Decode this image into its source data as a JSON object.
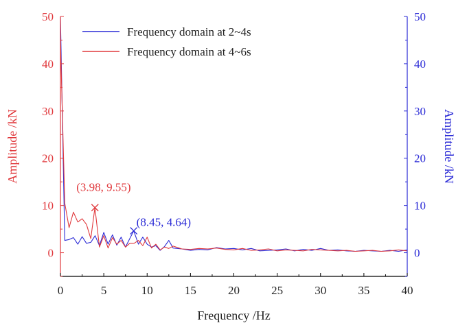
{
  "chart_data": {
    "type": "line",
    "title": "",
    "xlabel": "Frequency /Hz",
    "ylabel_left": "Amplitude /kN",
    "ylabel_right": "Amplitude /kN",
    "xlim": [
      0,
      40
    ],
    "ylim_left": [
      -5,
      50
    ],
    "ylim_right": [
      -5,
      50
    ],
    "x_ticks": [
      0,
      5,
      10,
      15,
      20,
      25,
      30,
      35,
      40
    ],
    "x_tick_labels": [
      "0",
      "5",
      "10",
      "15",
      "20",
      "25",
      "30",
      "35",
      "40"
    ],
    "y_ticks": [
      0,
      10,
      20,
      30,
      40,
      50
    ],
    "y_tick_labels": [
      "0",
      "10",
      "20",
      "30",
      "40",
      "50"
    ],
    "grid": false,
    "legend_position": "top-left",
    "colors": {
      "red": "#e0383c",
      "blue": "#2a2ad6",
      "axis": "#000000"
    },
    "series": [
      {
        "name": "Frequency domain at 2~4s",
        "color": "#2a2ad6",
        "axis": "right",
        "x": [
          0,
          0.5,
          1.0,
          1.5,
          2.0,
          2.5,
          3.0,
          3.5,
          4.0,
          4.5,
          5.0,
          5.5,
          6.0,
          6.5,
          7.0,
          7.5,
          8.0,
          8.45,
          9.0,
          9.5,
          10.0,
          10.5,
          11.0,
          11.5,
          12.0,
          12.5,
          13.0,
          14.0,
          15.0,
          16.0,
          17.0,
          18.0,
          19.0,
          20.0,
          21.0,
          22.0,
          23.0,
          24.0,
          25.0,
          26.0,
          27.0,
          28.0,
          29.0,
          30.0,
          31.0,
          32.0,
          33.0,
          34.0,
          35.0,
          36.0,
          37.0,
          38.0,
          39.0,
          40.0
        ],
        "y": [
          50,
          2.6,
          2.8,
          3.2,
          1.8,
          3.4,
          2.0,
          2.2,
          3.6,
          1.5,
          4.3,
          1.8,
          3.8,
          1.6,
          3.3,
          1.2,
          3.0,
          4.64,
          1.8,
          3.3,
          1.8,
          1.2,
          1.5,
          0.5,
          1.3,
          2.6,
          1.0,
          0.8,
          0.5,
          0.7,
          0.6,
          1.1,
          0.8,
          0.9,
          0.6,
          0.9,
          0.4,
          0.5,
          0.6,
          0.8,
          0.4,
          0.7,
          0.5,
          0.9,
          0.5,
          0.6,
          0.4,
          0.3,
          0.5,
          0.4,
          0.3,
          0.5,
          0.3,
          0.6
        ]
      },
      {
        "name": "Frequency domain at 4~6s",
        "color": "#e0383c",
        "axis": "left",
        "x": [
          0,
          0.5,
          1.0,
          1.5,
          2.0,
          2.5,
          3.0,
          3.5,
          3.98,
          4.5,
          5.0,
          5.5,
          6.0,
          6.5,
          7.0,
          7.5,
          8.0,
          8.5,
          9.0,
          9.5,
          10.0,
          10.5,
          11.0,
          11.5,
          12.0,
          12.5,
          13.0,
          14.0,
          15.0,
          16.0,
          17.0,
          18.0,
          19.0,
          20.0,
          21.0,
          22.0,
          23.0,
          24.0,
          25.0,
          26.0,
          27.0,
          28.0,
          29.0,
          30.0,
          31.0,
          32.0,
          33.0,
          34.0,
          35.0,
          36.0,
          37.0,
          38.0,
          39.0,
          40.0
        ],
        "y": [
          45,
          10.5,
          5.3,
          8.6,
          6.5,
          7.2,
          6.0,
          3.0,
          9.55,
          1.2,
          3.6,
          1.0,
          3.2,
          1.8,
          2.6,
          1.2,
          2.0,
          2.0,
          2.6,
          1.5,
          3.3,
          1.0,
          1.8,
          0.6,
          1.2,
          0.9,
          1.4,
          0.8,
          0.7,
          0.9,
          0.8,
          1.0,
          0.7,
          0.6,
          0.9,
          0.5,
          0.6,
          0.8,
          0.4,
          0.6,
          0.5,
          0.4,
          0.7,
          0.6,
          0.5,
          0.4,
          0.5,
          0.3,
          0.4,
          0.5,
          0.3,
          0.4,
          0.6,
          0.4
        ]
      }
    ],
    "annotations": [
      {
        "label": "(3.98, 9.55)",
        "x": 3.98,
        "y": 9.55,
        "color": "#e0383c",
        "marker": "x"
      },
      {
        "label": "(8.45, 4.64)",
        "x": 8.45,
        "y": 4.64,
        "color": "#2a2ad6",
        "marker": "x"
      }
    ]
  }
}
